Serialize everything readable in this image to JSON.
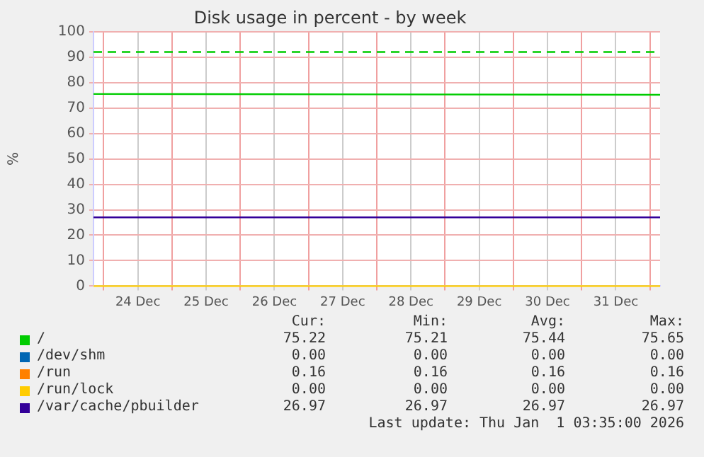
{
  "chart_data": {
    "type": "line",
    "title": "Disk usage in percent - by week",
    "ylabel": "%",
    "x": [
      "2025-12-23T20:25",
      "2026-01-01T03:35"
    ],
    "xlim": [
      "2025-12-23T20:25",
      "2026-01-01T03:35"
    ],
    "xticks": [
      {
        "value": "2025-12-24T00:00",
        "label": null
      },
      {
        "value": "2025-12-24T12:00",
        "label": "24 Dec"
      },
      {
        "value": "2025-12-25T00:00",
        "label": null
      },
      {
        "value": "2025-12-25T12:00",
        "label": "25 Dec"
      },
      {
        "value": "2025-12-26T00:00",
        "label": null
      },
      {
        "value": "2025-12-26T12:00",
        "label": "26 Dec"
      },
      {
        "value": "2025-12-27T00:00",
        "label": null
      },
      {
        "value": "2025-12-27T12:00",
        "label": "27 Dec"
      },
      {
        "value": "2025-12-28T00:00",
        "label": null
      },
      {
        "value": "2025-12-28T12:00",
        "label": "28 Dec"
      },
      {
        "value": "2025-12-29T00:00",
        "label": null
      },
      {
        "value": "2025-12-29T12:00",
        "label": "29 Dec"
      },
      {
        "value": "2025-12-30T00:00",
        "label": null
      },
      {
        "value": "2025-12-30T12:00",
        "label": "30 Dec"
      },
      {
        "value": "2025-12-31T00:00",
        "label": null
      },
      {
        "value": "2025-12-31T12:00",
        "label": "31 Dec"
      },
      {
        "value": "2026-01-01T00:00",
        "label": null
      }
    ],
    "ylim": [
      0,
      100
    ],
    "yticks": [
      0,
      10,
      20,
      30,
      40,
      50,
      60,
      70,
      80,
      90,
      100
    ],
    "grid": true,
    "legend": "bottom",
    "marker": "none",
    "line_style": "solid",
    "series": [
      {
        "name": "/",
        "color": "#00cc00",
        "values": [
          75.5,
          75.2
        ]
      },
      {
        "name": "/dev/shm",
        "color": "#0066b3",
        "values": [
          null,
          null
        ]
      },
      {
        "name": "/run",
        "color": "#ff8000",
        "values": [
          null,
          null
        ]
      },
      {
        "name": "/run/lock",
        "color": "#ffcc00",
        "values": [
          0,
          0
        ]
      },
      {
        "name": "/var/cache/pbuilder",
        "color": "#330099",
        "values": [
          27,
          27
        ]
      }
    ],
    "ref_lines": [
      {
        "axis": "y",
        "value": 92,
        "color": "#00cc00",
        "line_style": "dashed"
      }
    ],
    "annotations": [
      "Cur:",
      "Min:",
      "Avg:",
      "Max:",
      "75.22",
      "75.21",
      "75.44",
      "75.65",
      "0.00",
      "0.00",
      "0.00",
      "0.00",
      "0.16",
      "0.16",
      "0.16",
      "0.16",
      "0.00",
      "0.00",
      "0.00",
      "0.00",
      "26.97",
      "26.97",
      "26.97",
      "26.97",
      "Last update: Thu Jan  1 03:35:00 2026"
    ]
  }
}
